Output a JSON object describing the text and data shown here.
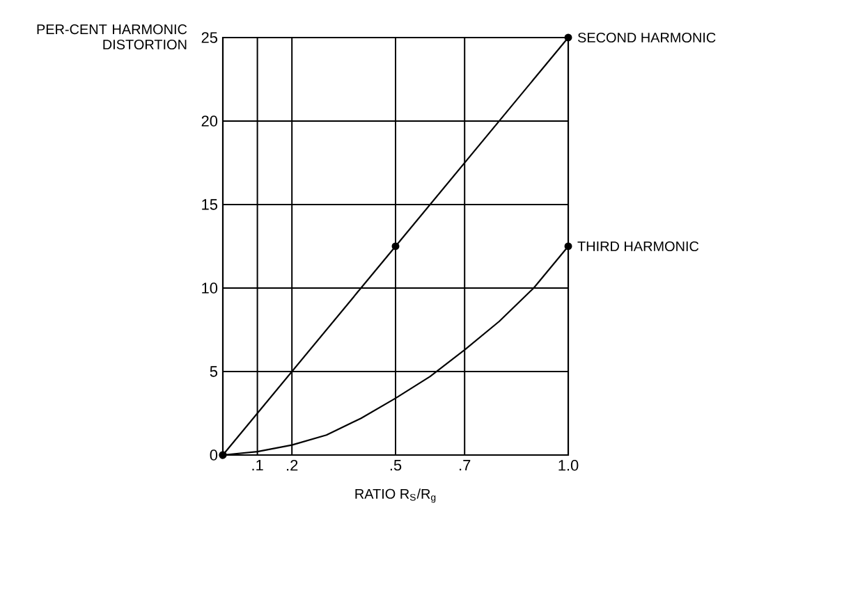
{
  "chart_data": {
    "type": "line",
    "ylabel": "PER-CENT HARMONIC DISTORTION",
    "xlabel": "RATIO R$_{S}$/R$_{g}$",
    "xlim": [
      0,
      1.0
    ],
    "ylim": [
      0,
      25
    ],
    "xticks": [
      {
        "value": 0.1,
        "label": ".1"
      },
      {
        "value": 0.2,
        "label": ".2"
      },
      {
        "value": 0.5,
        "label": ".5"
      },
      {
        "value": 0.7,
        "label": ".7"
      },
      {
        "value": 1.0,
        "label": "1.0"
      }
    ],
    "yticks": [
      0,
      5,
      10,
      15,
      20,
      25
    ],
    "grid": true,
    "legend": false,
    "series": [
      {
        "name": "SECOND HARMONIC",
        "color": "#000000",
        "marker": "circle",
        "x": [
          0,
          0.5,
          1.0
        ],
        "values": [
          0,
          12.5,
          25
        ]
      },
      {
        "name": "THIRD HARMONIC",
        "color": "#000000",
        "marker": "none",
        "x": [
          0,
          0.1,
          0.2,
          0.3,
          0.4,
          0.5,
          0.6,
          0.7,
          0.8,
          0.9,
          1.0
        ],
        "values": [
          0,
          0.2,
          0.6,
          1.2,
          2.2,
          3.4,
          4.7,
          6.3,
          8.0,
          10.0,
          12.5
        ]
      },
      {
        "type": "scatter",
        "color": "#000000",
        "marker": "circle",
        "x": [
          0,
          1.0
        ],
        "values": [
          0,
          12.5
        ]
      }
    ]
  }
}
